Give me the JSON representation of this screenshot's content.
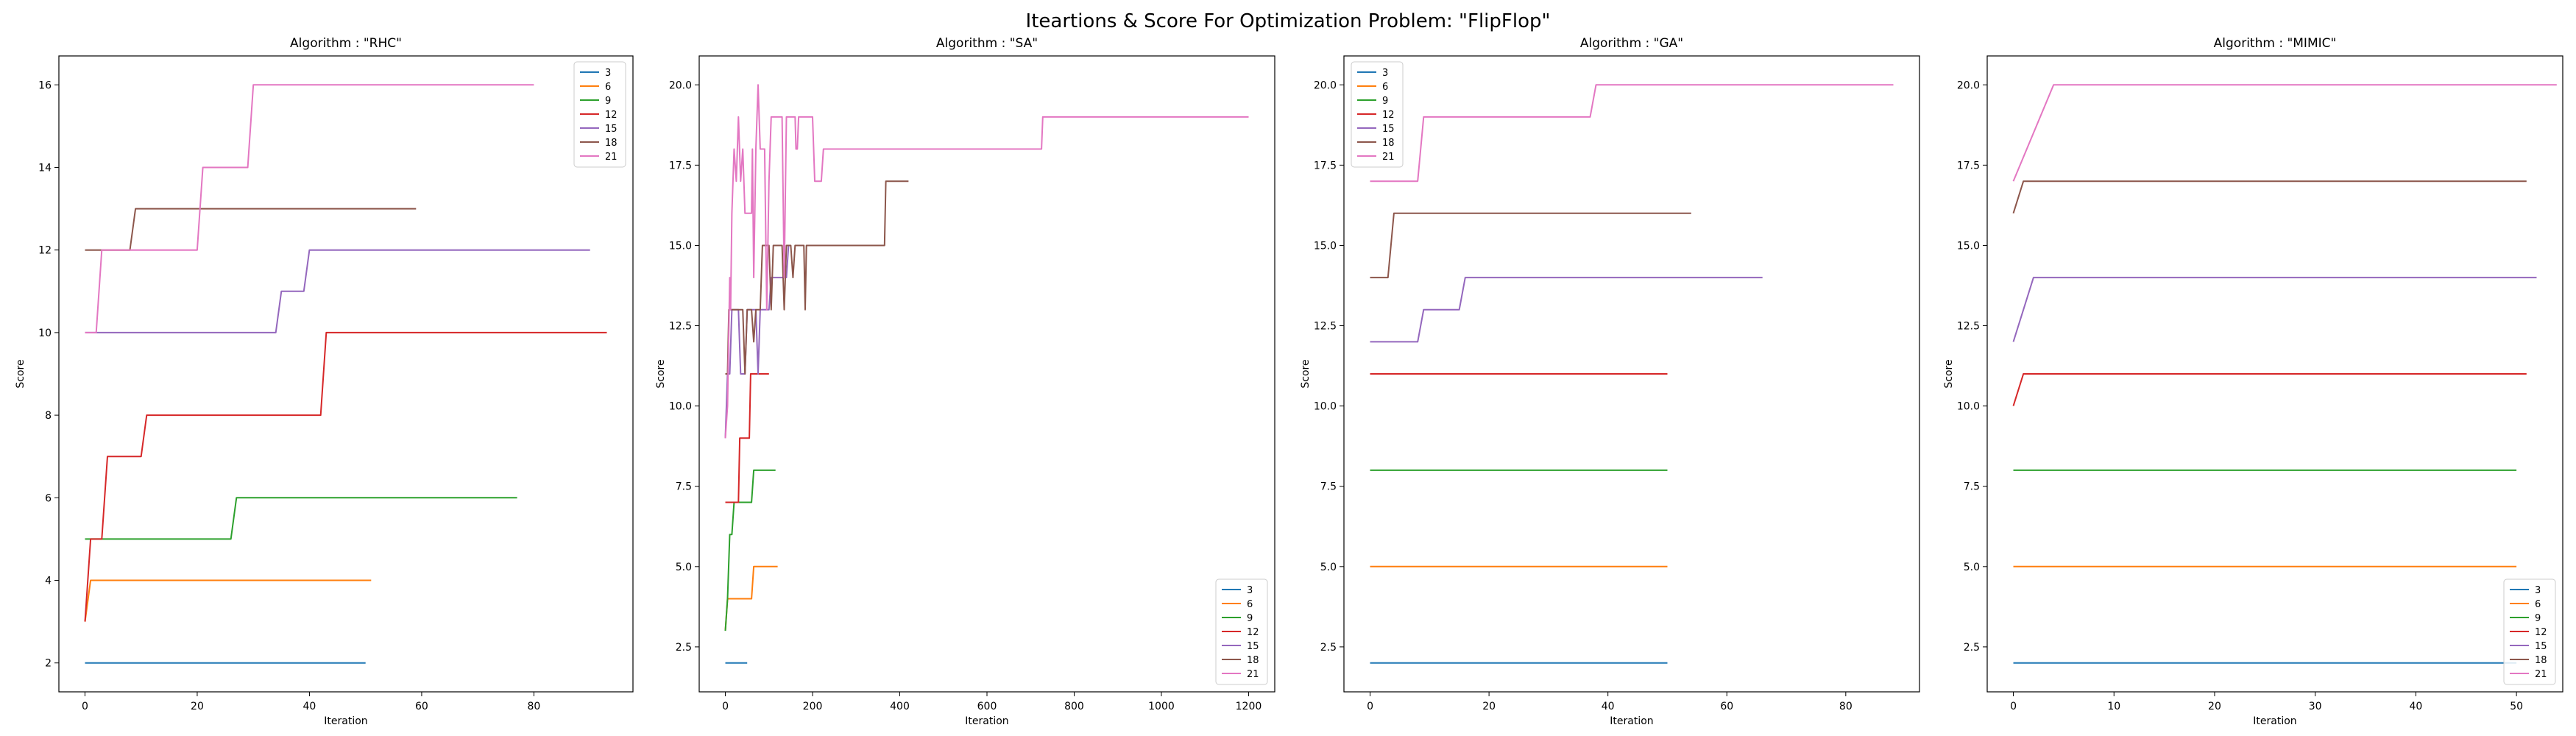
{
  "suptitle": "Iteartions & Score For Optimization Problem: \"FlipFlop\"",
  "colors": {
    "3": "#1f77b4",
    "6": "#ff7f0e",
    "9": "#2ca02c",
    "12": "#d62728",
    "15": "#9467bd",
    "18": "#8c564b",
    "21": "#e377c2"
  },
  "chart_data": [
    {
      "type": "line",
      "title": "Algorithm : \"RHC\"",
      "xlabel": "Iteration",
      "ylabel": "Score",
      "xlim": [
        -4.65,
        97.65
      ],
      "ylim": [
        1.3,
        16.7
      ],
      "xticks": [
        0,
        20,
        40,
        60,
        80
      ],
      "xticklabels": [
        "0",
        "20",
        "40",
        "60",
        "80"
      ],
      "yticks": [
        2,
        4,
        6,
        8,
        10,
        12,
        14,
        16
      ],
      "yticklabels": [
        "2",
        "4",
        "6",
        "8",
        "10",
        "12",
        "14",
        "16"
      ],
      "legend": "top-right",
      "series": [
        {
          "name": "3",
          "points": [
            [
              0,
              2
            ],
            [
              50,
              2
            ]
          ]
        },
        {
          "name": "6",
          "points": [
            [
              0,
              3
            ],
            [
              1,
              4
            ],
            [
              51,
              4
            ]
          ]
        },
        {
          "name": "9",
          "points": [
            [
              0,
              5
            ],
            [
              26,
              5
            ],
            [
              27,
              6
            ],
            [
              77,
              6
            ]
          ]
        },
        {
          "name": "12",
          "points": [
            [
              0,
              3
            ],
            [
              1,
              5
            ],
            [
              3,
              5
            ],
            [
              4,
              7
            ],
            [
              10,
              7
            ],
            [
              11,
              8
            ],
            [
              42,
              8
            ],
            [
              43,
              10
            ],
            [
              93,
              10
            ]
          ]
        },
        {
          "name": "15",
          "points": [
            [
              0,
              10
            ],
            [
              34,
              10
            ],
            [
              35,
              11
            ],
            [
              39,
              11
            ],
            [
              40,
              12
            ],
            [
              90,
              12
            ]
          ]
        },
        {
          "name": "18",
          "points": [
            [
              0,
              12
            ],
            [
              8,
              12
            ],
            [
              9,
              13
            ],
            [
              59,
              13
            ]
          ]
        },
        {
          "name": "21",
          "points": [
            [
              0,
              10
            ],
            [
              2,
              10
            ],
            [
              3,
              12
            ],
            [
              20,
              12
            ],
            [
              21,
              14
            ],
            [
              29,
              14
            ],
            [
              30,
              16
            ],
            [
              80,
              16
            ]
          ]
        }
      ]
    },
    {
      "type": "line",
      "title": "Algorithm : \"SA\"",
      "xlabel": "Iteration",
      "ylabel": "Score",
      "xlim": [
        -60,
        1260
      ],
      "ylim": [
        1.1,
        20.9
      ],
      "xticks": [
        0,
        200,
        400,
        600,
        800,
        1000,
        1200
      ],
      "xticklabels": [
        "0",
        "200",
        "400",
        "600",
        "800",
        "1000",
        "1200"
      ],
      "yticks": [
        2.5,
        5.0,
        7.5,
        10.0,
        12.5,
        15.0,
        17.5,
        20.0
      ],
      "yticklabels": [
        "2.5",
        "5.0",
        "7.5",
        "10.0",
        "12.5",
        "15.0",
        "17.5",
        "20.0"
      ],
      "legend": "bottom-right",
      "series": [
        {
          "name": "3",
          "points": [
            [
              0,
              2
            ],
            [
              50,
              2
            ]
          ]
        },
        {
          "name": "6",
          "points": [
            [
              0,
              3
            ],
            [
              5,
              4
            ],
            [
              60,
              4
            ],
            [
              65,
              5
            ],
            [
              120,
              5
            ]
          ]
        },
        {
          "name": "9",
          "points": [
            [
              0,
              3
            ],
            [
              5,
              4
            ],
            [
              10,
              6
            ],
            [
              15,
              6
            ],
            [
              20,
              7
            ],
            [
              60,
              7
            ],
            [
              65,
              8
            ],
            [
              115,
              8
            ]
          ]
        },
        {
          "name": "12",
          "points": [
            [
              0,
              7
            ],
            [
              30,
              7
            ],
            [
              33,
              9
            ],
            [
              55,
              9
            ],
            [
              58,
              11
            ],
            [
              100,
              11
            ]
          ]
        },
        {
          "name": "15",
          "points": [
            [
              0,
              9
            ],
            [
              5,
              11
            ],
            [
              10,
              11
            ],
            [
              15,
              13
            ],
            [
              30,
              13
            ],
            [
              35,
              11
            ],
            [
              45,
              11
            ],
            [
              50,
              13
            ],
            [
              70,
              13
            ],
            [
              75,
              11
            ],
            [
              80,
              13
            ],
            [
              100,
              13
            ],
            [
              105,
              14
            ],
            [
              140,
              14
            ],
            [
              145,
              15
            ],
            [
              150,
              15
            ]
          ]
        },
        {
          "name": "18",
          "points": [
            [
              0,
              11
            ],
            [
              5,
              11
            ],
            [
              8,
              13
            ],
            [
              40,
              13
            ],
            [
              45,
              11
            ],
            [
              50,
              13
            ],
            [
              60,
              13
            ],
            [
              65,
              12
            ],
            [
              70,
              13
            ],
            [
              80,
              13
            ],
            [
              85,
              15
            ],
            [
              100,
              15
            ],
            [
              105,
              13
            ],
            [
              110,
              15
            ],
            [
              130,
              15
            ],
            [
              135,
              13
            ],
            [
              140,
              15
            ],
            [
              150,
              15
            ],
            [
              155,
              14
            ],
            [
              160,
              15
            ],
            [
              180,
              15
            ],
            [
              183,
              13
            ],
            [
              186,
              15
            ],
            [
              365,
              15
            ],
            [
              368,
              17
            ],
            [
              420,
              17
            ]
          ]
        },
        {
          "name": "21",
          "points": [
            [
              0,
              9
            ],
            [
              5,
              10
            ],
            [
              10,
              14
            ],
            [
              12,
              13
            ],
            [
              15,
              16
            ],
            [
              20,
              18
            ],
            [
              25,
              17
            ],
            [
              30,
              19
            ],
            [
              35,
              17
            ],
            [
              40,
              18
            ],
            [
              45,
              16
            ],
            [
              60,
              16
            ],
            [
              62,
              18
            ],
            [
              65,
              14
            ],
            [
              70,
              18
            ],
            [
              75,
              20
            ],
            [
              80,
              18
            ],
            [
              90,
              18
            ],
            [
              95,
              13
            ],
            [
              100,
              17
            ],
            [
              105,
              19
            ],
            [
              130,
              19
            ],
            [
              135,
              14
            ],
            [
              140,
              19
            ],
            [
              160,
              19
            ],
            [
              162,
              18
            ],
            [
              165,
              18
            ],
            [
              168,
              19
            ],
            [
              200,
              19
            ],
            [
              205,
              17
            ],
            [
              220,
              17
            ],
            [
              225,
              18
            ],
            [
              725,
              18
            ],
            [
              728,
              19
            ],
            [
              1200,
              19
            ]
          ]
        }
      ]
    },
    {
      "type": "line",
      "title": "Algorithm : \"GA\"",
      "xlabel": "Iteration",
      "ylabel": "Score",
      "xlim": [
        -4.4,
        92.4
      ],
      "ylim": [
        1.1,
        20.9
      ],
      "xticks": [
        0,
        20,
        40,
        60,
        80
      ],
      "xticklabels": [
        "0",
        "20",
        "40",
        "60",
        "80"
      ],
      "yticks": [
        2.5,
        5.0,
        7.5,
        10.0,
        12.5,
        15.0,
        17.5,
        20.0
      ],
      "yticklabels": [
        "2.5",
        "5.0",
        "7.5",
        "10.0",
        "12.5",
        "15.0",
        "17.5",
        "20.0"
      ],
      "legend": "top-left",
      "series": [
        {
          "name": "3",
          "points": [
            [
              0,
              2
            ],
            [
              50,
              2
            ]
          ]
        },
        {
          "name": "6",
          "points": [
            [
              0,
              5
            ],
            [
              50,
              5
            ]
          ]
        },
        {
          "name": "9",
          "points": [
            [
              0,
              8
            ],
            [
              50,
              8
            ]
          ]
        },
        {
          "name": "12",
          "points": [
            [
              0,
              11
            ],
            [
              50,
              11
            ]
          ]
        },
        {
          "name": "15",
          "points": [
            [
              0,
              12
            ],
            [
              8,
              12
            ],
            [
              9,
              13
            ],
            [
              15,
              13
            ],
            [
              16,
              14
            ],
            [
              66,
              14
            ]
          ]
        },
        {
          "name": "18",
          "points": [
            [
              0,
              14
            ],
            [
              3,
              14
            ],
            [
              4,
              16
            ],
            [
              54,
              16
            ]
          ]
        },
        {
          "name": "21",
          "points": [
            [
              0,
              17
            ],
            [
              8,
              17
            ],
            [
              9,
              19
            ],
            [
              37,
              19
            ],
            [
              38,
              20
            ],
            [
              88,
              20
            ]
          ]
        }
      ]
    },
    {
      "type": "line",
      "title": "Algorithm : \"MIMIC\"",
      "xlabel": "Iteration",
      "ylabel": "Score",
      "xlim": [
        -2.6,
        54.6
      ],
      "ylim": [
        1.1,
        20.9
      ],
      "xticks": [
        0,
        10,
        20,
        30,
        40,
        50
      ],
      "xticklabels": [
        "0",
        "10",
        "20",
        "30",
        "40",
        "50"
      ],
      "yticks": [
        2.5,
        5.0,
        7.5,
        10.0,
        12.5,
        15.0,
        17.5,
        20.0
      ],
      "yticklabels": [
        "2.5",
        "5.0",
        "7.5",
        "10.0",
        "12.5",
        "15.0",
        "17.5",
        "20.0"
      ],
      "legend": "bottom-right",
      "series": [
        {
          "name": "3",
          "points": [
            [
              0,
              2
            ],
            [
              50,
              2
            ]
          ]
        },
        {
          "name": "6",
          "points": [
            [
              0,
              5
            ],
            [
              50,
              5
            ]
          ]
        },
        {
          "name": "9",
          "points": [
            [
              0,
              8
            ],
            [
              50,
              8
            ]
          ]
        },
        {
          "name": "12",
          "points": [
            [
              0,
              10
            ],
            [
              1,
              11
            ],
            [
              51,
              11
            ]
          ]
        },
        {
          "name": "15",
          "points": [
            [
              0,
              12
            ],
            [
              2,
              14
            ],
            [
              52,
              14
            ]
          ]
        },
        {
          "name": "18",
          "points": [
            [
              0,
              16
            ],
            [
              1,
              17
            ],
            [
              51,
              17
            ]
          ]
        },
        {
          "name": "21",
          "points": [
            [
              0,
              17
            ],
            [
              4,
              20
            ],
            [
              54,
              20
            ]
          ]
        }
      ]
    }
  ]
}
